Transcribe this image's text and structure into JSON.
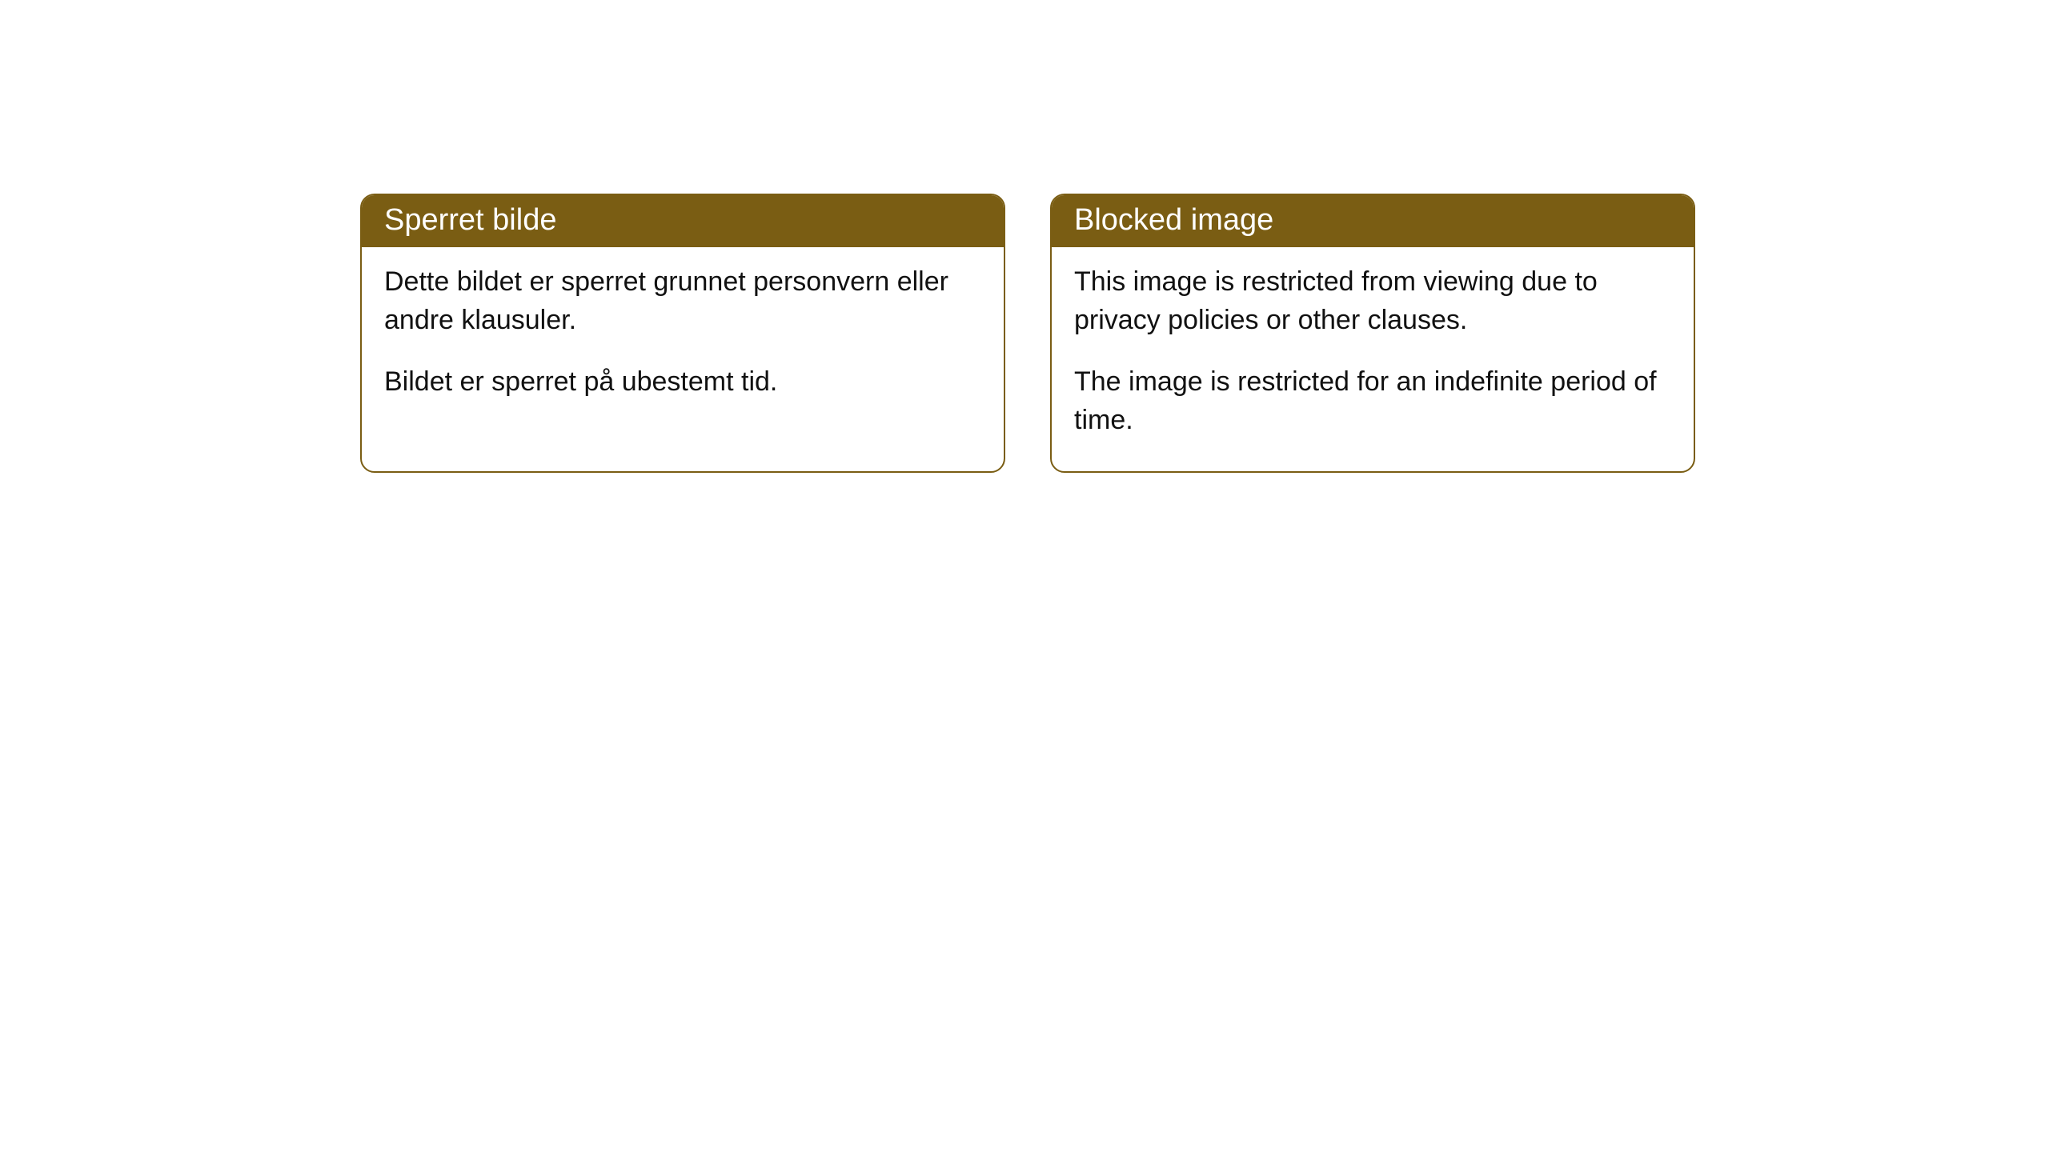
{
  "cards": [
    {
      "title": "Sperret bilde",
      "paragraph1": "Dette bildet er sperret grunnet personvern eller andre klausuler.",
      "paragraph2": "Bildet er sperret på ubestemt tid."
    },
    {
      "title": "Blocked image",
      "paragraph1": "This image is restricted from viewing due to privacy policies or other clauses.",
      "paragraph2": "The image is restricted for an indefinite period of time."
    }
  ],
  "styling": {
    "header_background_color": "#7a5d13",
    "header_text_color": "#ffffff",
    "border_color": "#7a5d13",
    "body_text_color": "#111111",
    "background_color": "#ffffff",
    "border_radius": 18,
    "header_fontsize": 38,
    "body_fontsize": 34
  }
}
